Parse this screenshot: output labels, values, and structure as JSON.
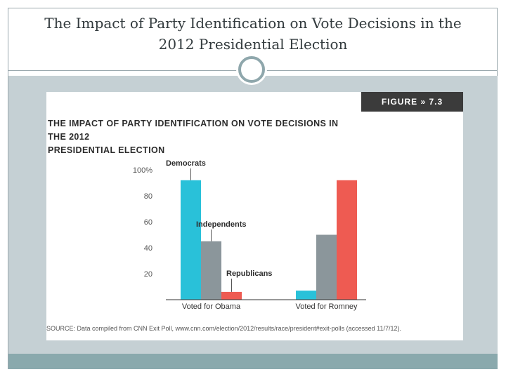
{
  "slide": {
    "title_line1": "The Impact of Party Identification on Vote Decisions in the",
    "title_line2": "2012 Presidential Election"
  },
  "figure": {
    "badge": "FIGURE » 7.3",
    "title_line1": "THE IMPACT OF PARTY IDENTIFICATION ON VOTE DECISIONS IN THE 2012",
    "title_line2": "PRESIDENTIAL ELECTION",
    "source": "SOURCE: Data compiled from CNN Exit Poll, www.cnn.com/election/2012/results/race/president#exit-polls (accessed 11/7/12)."
  },
  "chart_data": {
    "type": "bar",
    "categories": [
      "Voted for Obama",
      "Voted for Romney"
    ],
    "series": [
      {
        "name": "Democrats",
        "color": "#29c1d9",
        "values": [
          92,
          7
        ]
      },
      {
        "name": "Independents",
        "color": "#8b969b",
        "values": [
          45,
          50
        ]
      },
      {
        "name": "Republicans",
        "color": "#ee5b52",
        "values": [
          6,
          92
        ]
      }
    ],
    "yticks": [
      {
        "value": 100,
        "label": "100%"
      },
      {
        "value": 80,
        "label": "80"
      },
      {
        "value": 60,
        "label": "60"
      },
      {
        "value": 40,
        "label": "40"
      },
      {
        "value": 20,
        "label": "20"
      }
    ],
    "ylim": [
      0,
      100
    ],
    "title": "THE IMPACT OF PARTY IDENTIFICATION ON VOTE DECISIONS IN THE 2012 PRESIDENTIAL ELECTION",
    "xlabel": "",
    "ylabel": ""
  }
}
